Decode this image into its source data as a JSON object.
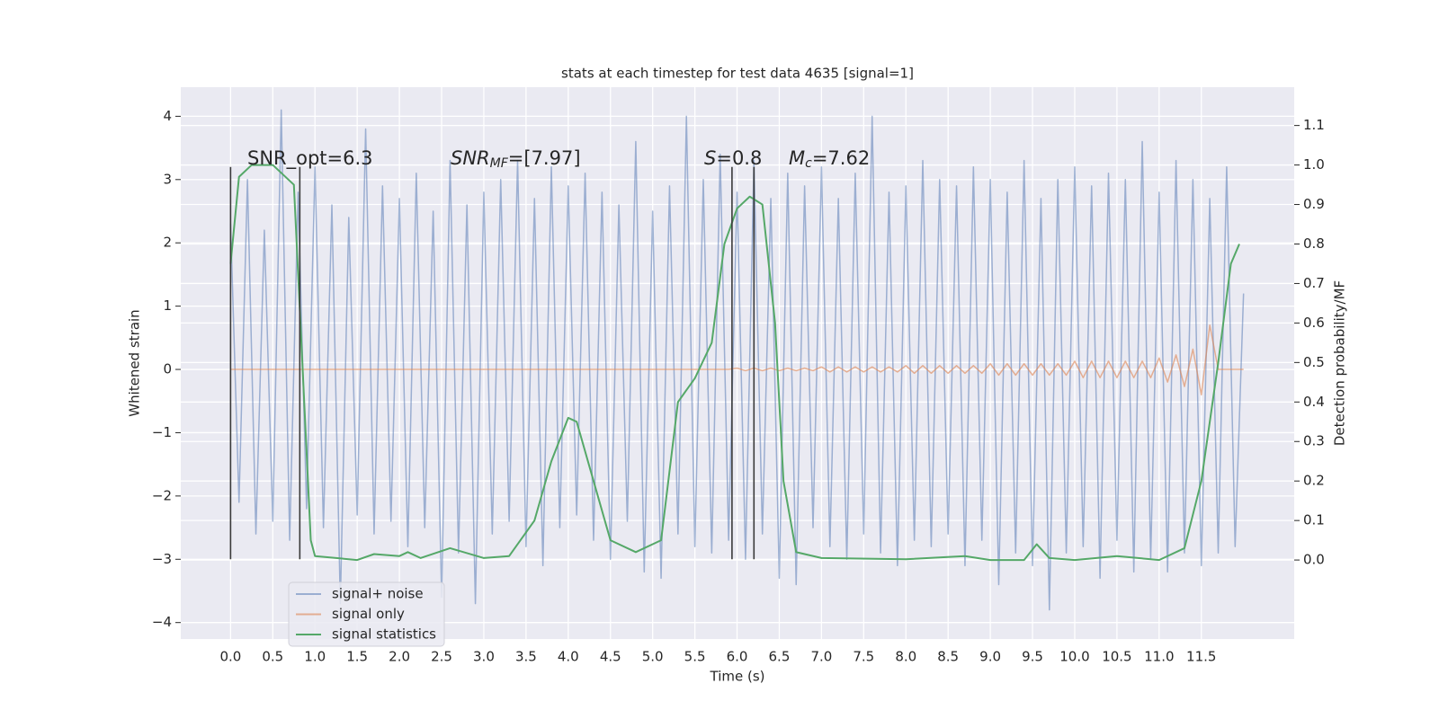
{
  "chart_data": {
    "type": "line",
    "title": "stats at each timestep for test data 4635 [signal=1]",
    "xlabel": "Time (s)",
    "ylabel": "Whitened strain",
    "y2label": "Detection probability/MF",
    "grid": true,
    "legend": "lower left",
    "xlim": [
      -0.59,
      12.6
    ],
    "ylim": [
      -4.26,
      4.46
    ],
    "y2lim": [
      -0.2,
      1.197
    ],
    "xticks": [
      {
        "value": 0,
        "label": "0.0"
      },
      {
        "value": 0.5,
        "label": "0.5"
      },
      {
        "value": 1,
        "label": "1.0"
      },
      {
        "value": 1.5,
        "label": "1.5"
      },
      {
        "value": 2,
        "label": "2.0"
      },
      {
        "value": 2.5,
        "label": "2.5"
      },
      {
        "value": 3,
        "label": "3.0"
      },
      {
        "value": 3.5,
        "label": "3.5"
      },
      {
        "value": 4,
        "label": "4.0"
      },
      {
        "value": 4.5,
        "label": "4.5"
      },
      {
        "value": 5,
        "label": "5.0"
      },
      {
        "value": 5.5,
        "label": "5.5"
      },
      {
        "value": 6,
        "label": "6.0"
      },
      {
        "value": 6.5,
        "label": "6.5"
      },
      {
        "value": 7,
        "label": "7.0"
      },
      {
        "value": 7.5,
        "label": "7.5"
      },
      {
        "value": 8,
        "label": "8.0"
      },
      {
        "value": 8.5,
        "label": "8.5"
      },
      {
        "value": 9,
        "label": "9.0"
      },
      {
        "value": 9.5,
        "label": "9.5"
      },
      {
        "value": 10,
        "label": "10.0"
      },
      {
        "value": 10.5,
        "label": "10.5"
      },
      {
        "value": 11,
        "label": "11.0"
      },
      {
        "value": 11.5,
        "label": "11.5"
      }
    ],
    "yticks": [
      {
        "value": -4,
        "label": "−4"
      },
      {
        "value": -3,
        "label": "−3"
      },
      {
        "value": -2,
        "label": "−2"
      },
      {
        "value": -1,
        "label": "−1"
      },
      0,
      1,
      2,
      3,
      4
    ],
    "y2ticks": [
      {
        "value": 0,
        "label": "0.0"
      },
      {
        "value": 0.1,
        "label": "0.1"
      },
      {
        "value": 0.2,
        "label": "0.2"
      },
      {
        "value": 0.3,
        "label": "0.3"
      },
      {
        "value": 0.4,
        "label": "0.4"
      },
      {
        "value": 0.5,
        "label": "0.5"
      },
      {
        "value": 0.6,
        "label": "0.6"
      },
      {
        "value": 0.7,
        "label": "0.7"
      },
      {
        "value": 0.8,
        "label": "0.8"
      },
      {
        "value": 0.9,
        "label": "0.9"
      },
      {
        "value": 1,
        "label": "1.0"
      },
      {
        "value": 1.1,
        "label": "1.1"
      }
    ],
    "annotations": [
      {
        "parts": [
          "SNR_opt=6.3"
        ]
      },
      {
        "parts": [
          "SNR",
          "MF",
          "=[7.97]"
        ]
      },
      {
        "parts": [
          "S",
          "=0.8"
        ]
      },
      {
        "parts": [
          "M",
          "c",
          "=7.62"
        ]
      }
    ],
    "vlines": {
      "x": [
        0.0,
        0.82,
        5.94,
        6.2
      ],
      "ymin": -3,
      "ymax": 3.2,
      "color": "#3a3a3a"
    },
    "x": [
      0,
      0.1,
      0.2,
      0.3,
      0.4,
      0.5,
      0.6,
      0.7,
      0.8,
      0.9,
      1,
      1.1,
      1.2,
      1.3,
      1.4,
      1.5,
      1.6,
      1.7,
      1.8,
      1.9,
      2,
      2.1,
      2.2,
      2.3,
      2.4,
      2.5,
      2.6,
      2.7,
      2.8,
      2.9,
      3,
      3.1,
      3.2,
      3.3,
      3.4,
      3.5,
      3.6,
      3.7,
      3.8,
      3.9,
      4,
      4.1,
      4.2,
      4.3,
      4.4,
      4.5,
      4.6,
      4.7,
      4.8,
      4.9,
      5,
      5.1,
      5.2,
      5.3,
      5.4,
      5.5,
      5.6,
      5.7,
      5.8,
      5.9,
      6,
      6.1,
      6.2,
      6.3,
      6.4,
      6.5,
      6.6,
      6.7,
      6.8,
      6.9,
      7,
      7.1,
      7.2,
      7.3,
      7.4,
      7.5,
      7.6,
      7.7,
      7.8,
      7.9,
      8,
      8.1,
      8.2,
      8.3,
      8.4,
      8.5,
      8.6,
      8.7,
      8.8,
      8.9,
      9,
      9.1,
      9.2,
      9.3,
      9.4,
      9.5,
      9.6,
      9.7,
      9.8,
      9.9,
      10,
      10.1,
      10.2,
      10.3,
      10.4,
      10.5,
      10.6,
      10.7,
      10.8,
      10.9,
      11,
      11.1,
      11.2,
      11.3,
      11.4,
      11.5,
      11.6,
      11.7,
      11.8,
      11.9,
      12
    ],
    "series": [
      {
        "name": "signal+ noise",
        "color": "#4c72b0",
        "opacity": 0.5,
        "axis": "y",
        "values": [
          2.3,
          -2.1,
          3.0,
          -2.6,
          2.2,
          -2.4,
          4.1,
          -2.7,
          2.8,
          -2.2,
          3.2,
          -2.5,
          2.6,
          -3.7,
          2.4,
          -2.3,
          3.8,
          -2.6,
          2.9,
          -2.4,
          2.7,
          -2.8,
          3.1,
          -2.5,
          2.5,
          -3.6,
          3.3,
          -2.9,
          2.6,
          -3.7,
          2.8,
          -2.6,
          3.0,
          -2.4,
          3.3,
          -2.8,
          2.7,
          -3.1,
          3.2,
          -2.5,
          2.9,
          -2.3,
          3.1,
          -2.7,
          2.8,
          -3.0,
          2.6,
          -2.4,
          3.6,
          -3.2,
          2.5,
          -3.3,
          2.9,
          -2.6,
          4.0,
          -2.8,
          3.0,
          -2.9,
          3.4,
          -2.7,
          2.8,
          -3.0,
          3.3,
          -2.6,
          2.7,
          -3.3,
          3.1,
          -3.4,
          2.9,
          -2.5,
          3.2,
          -2.8,
          2.7,
          -3.0,
          3.1,
          -2.6,
          4.0,
          -2.9,
          2.8,
          -3.1,
          2.9,
          -2.7,
          3.3,
          -2.8,
          3.0,
          -2.6,
          2.9,
          -3.1,
          3.2,
          -2.7,
          3.0,
          -3.4,
          2.8,
          -2.9,
          3.3,
          -3.1,
          2.7,
          -3.8,
          3.0,
          -2.9,
          3.2,
          -2.8,
          2.9,
          -3.3,
          3.1,
          -2.7,
          3.0,
          -3.2,
          3.6,
          -3.0,
          2.8,
          -3.2,
          3.3,
          -2.9,
          3.0,
          -3.1,
          2.7,
          -2.9,
          3.2,
          -2.8,
          1.2
        ]
      },
      {
        "name": "signal only",
        "color": "#dd8452",
        "opacity": 0.6,
        "axis": "y",
        "values": [
          0,
          0,
          0,
          0,
          0,
          0,
          0,
          0,
          0,
          0,
          0,
          0,
          0,
          0,
          0,
          0,
          0,
          0,
          0,
          0,
          0,
          0,
          0,
          0,
          0,
          0,
          0,
          0,
          0,
          0,
          0,
          0,
          0,
          0,
          0,
          0,
          0,
          0,
          0,
          0,
          0,
          0,
          0,
          0,
          0,
          0,
          0,
          0,
          0,
          0,
          0,
          0,
          0,
          0,
          0,
          0,
          0,
          0,
          0,
          0,
          0.02,
          -0.02,
          0.02,
          -0.02,
          0.02,
          -0.02,
          0.02,
          -0.02,
          0.02,
          -0.02,
          0.04,
          -0.04,
          0.04,
          -0.04,
          0.04,
          -0.04,
          0.04,
          -0.04,
          0.04,
          -0.04,
          0.06,
          -0.06,
          0.06,
          -0.06,
          0.06,
          -0.06,
          0.06,
          -0.06,
          0.06,
          -0.06,
          0.09,
          -0.09,
          0.09,
          -0.09,
          0.09,
          -0.09,
          0.09,
          -0.09,
          0.09,
          -0.09,
          0.13,
          -0.13,
          0.13,
          -0.13,
          0.13,
          -0.13,
          0.13,
          -0.13,
          0.13,
          -0.13,
          0.18,
          -0.2,
          0.23,
          -0.27,
          0.32,
          -0.4,
          0.7,
          0,
          0,
          0,
          0
        ]
      },
      {
        "name": "signal statistics",
        "color": "#55a868",
        "opacity": 1,
        "axis": "y2",
        "x": [
          0,
          0.1,
          0.25,
          0.5,
          0.75,
          0.85,
          0.95,
          1,
          1.5,
          1.7,
          2,
          2.1,
          2.25,
          2.6,
          3,
          3.3,
          3.6,
          3.8,
          4,
          4.1,
          4.3,
          4.5,
          4.8,
          5.1,
          5.3,
          5.5,
          5.7,
          5.85,
          6,
          6.15,
          6.3,
          6.45,
          6.55,
          6.7,
          7,
          8,
          8.7,
          9,
          9.4,
          9.55,
          9.7,
          10,
          10.5,
          11,
          11.3,
          11.5,
          11.7,
          11.85,
          11.95
        ],
        "values": [
          0.75,
          0.97,
          1.0,
          1.0,
          0.95,
          0.5,
          0.05,
          0.01,
          0.0,
          0.015,
          0.01,
          0.02,
          0.005,
          0.03,
          0.005,
          0.01,
          0.1,
          0.25,
          0.36,
          0.35,
          0.2,
          0.05,
          0.02,
          0.05,
          0.4,
          0.46,
          0.55,
          0.8,
          0.89,
          0.92,
          0.9,
          0.6,
          0.2,
          0.02,
          0.005,
          0.002,
          0.01,
          0.0,
          0.0,
          0.04,
          0.005,
          0.0,
          0.01,
          0.0,
          0.03,
          0.2,
          0.5,
          0.75,
          0.8
        ]
      }
    ]
  }
}
